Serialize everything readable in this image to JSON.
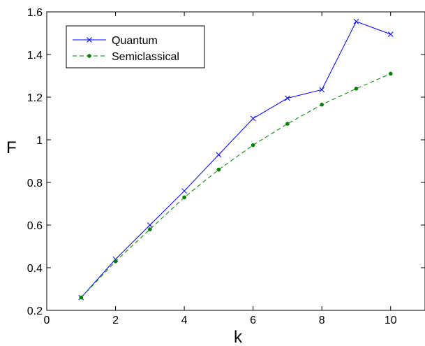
{
  "chart_data": {
    "type": "line",
    "xlabel": "k",
    "ylabel": "F",
    "xlim": [
      0,
      11
    ],
    "ylim": [
      0.2,
      1.6
    ],
    "xticks": [
      0,
      2,
      4,
      6,
      8,
      10
    ],
    "yticks": [
      0.2,
      0.4,
      0.6,
      0.8,
      1.0,
      1.2,
      1.4,
      1.6
    ],
    "xtick_labels": [
      "0",
      "2",
      "4",
      "6",
      "8",
      "10"
    ],
    "ytick_labels": [
      "0.2",
      "0.4",
      "0.6",
      "0.8",
      "1",
      "1.2",
      "1.4",
      "1.6"
    ],
    "grid": false,
    "legend_position": "top-left",
    "x": [
      1,
      2,
      3,
      4,
      5,
      6,
      7,
      8,
      9,
      10
    ],
    "series": [
      {
        "name": "Quantum",
        "values": [
          0.26,
          0.44,
          0.6,
          0.76,
          0.93,
          1.1,
          1.195,
          1.235,
          1.555,
          1.495
        ],
        "color": "#0000ff",
        "line_style": "solid",
        "marker": "x"
      },
      {
        "name": "Semiclassical",
        "values": [
          0.26,
          0.43,
          0.58,
          0.73,
          0.86,
          0.975,
          1.075,
          1.165,
          1.24,
          1.31
        ],
        "color": "#008000",
        "line_style": "dashed",
        "marker": "dot"
      }
    ]
  }
}
